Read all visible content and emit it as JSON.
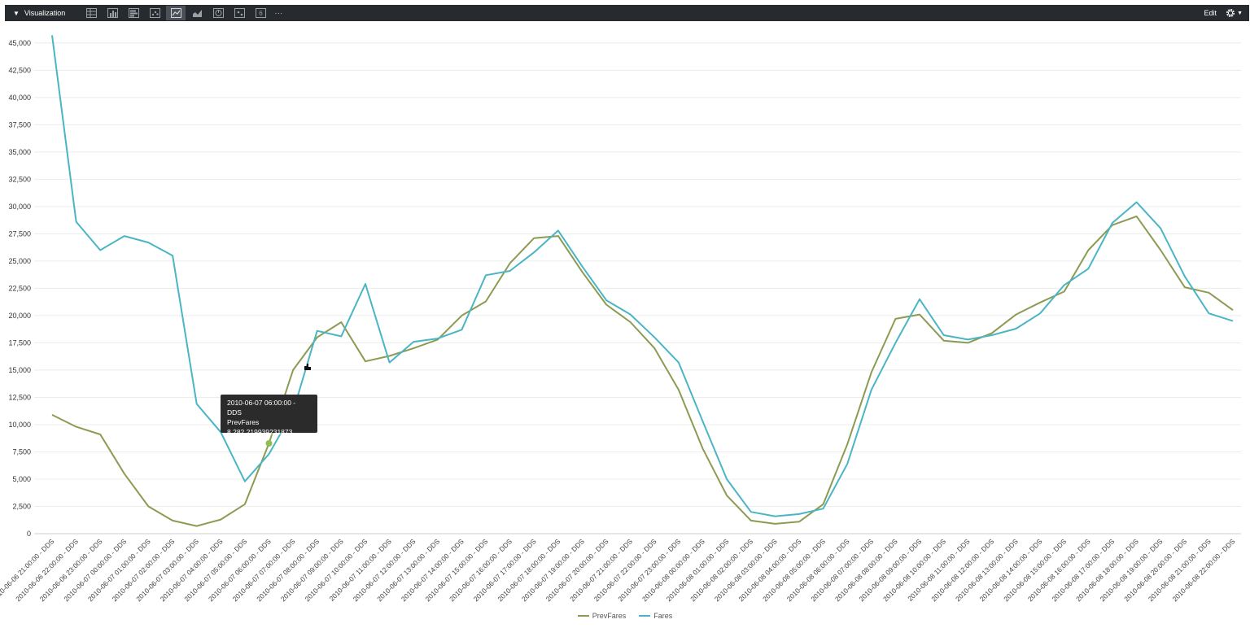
{
  "panel": {
    "title": "Visualization",
    "collapse_icon": "triangle-down-icon",
    "edit_label": "Edit",
    "more_label": "···",
    "toolbar": [
      {
        "icon": "table-icon",
        "active": false
      },
      {
        "icon": "column-chart-icon",
        "active": false
      },
      {
        "icon": "bar-chart-icon",
        "active": false
      },
      {
        "icon": "scatter-chart-icon",
        "active": false
      },
      {
        "icon": "line-chart-icon",
        "active": true
      },
      {
        "icon": "area-chart-icon",
        "active": false
      },
      {
        "icon": "pie-chart-icon",
        "active": false
      },
      {
        "icon": "map-icon",
        "active": false
      },
      {
        "icon": "single-value-icon",
        "active": false
      }
    ]
  },
  "tooltip": {
    "time": "2010-06-07 06:00:00 - DDS",
    "series": "PrevFares",
    "value": "8,282.219939231873"
  },
  "legend": [
    {
      "name": "PrevFares",
      "color": "#8c9b52"
    },
    {
      "name": "Fares",
      "color": "#4ab5c4"
    }
  ],
  "chart_data": {
    "type": "line",
    "ylim": [
      0,
      47000
    ],
    "yticks": [
      "0",
      "2,500",
      "5,000",
      "7,500",
      "10,000",
      "12,500",
      "15,000",
      "17,500",
      "20,000",
      "22,500",
      "25,000",
      "27,500",
      "30,000",
      "32,500",
      "35,000",
      "37,500",
      "40,000",
      "42,500",
      "45,000"
    ],
    "ytick_values": [
      0,
      2500,
      5000,
      7500,
      10000,
      12500,
      15000,
      17500,
      20000,
      22500,
      25000,
      27500,
      30000,
      32500,
      35000,
      37500,
      40000,
      42500,
      45000
    ],
    "grid": true,
    "legend_position": "bottom",
    "categories": [
      "2010-06-06 21:00:00 - DDS",
      "2010-06-06 22:00:00 - DDS",
      "2010-06-06 23:00:00 - DDS",
      "2010-06-07 00:00:00 - DDS",
      "2010-06-07 01:00:00 - DDS",
      "2010-06-07 02:00:00 - DDS",
      "2010-06-07 03:00:00 - DDS",
      "2010-06-07 04:00:00 - DDS",
      "2010-06-07 05:00:00 - DDS",
      "2010-06-07 06:00:00 - DDS",
      "2010-06-07 07:00:00 - DDS",
      "2010-06-07 08:00:00 - DDS",
      "2010-06-07 09:00:00 - DDS",
      "2010-06-07 10:00:00 - DDS",
      "2010-06-07 11:00:00 - DDS",
      "2010-06-07 12:00:00 - DDS",
      "2010-06-07 13:00:00 - DDS",
      "2010-06-07 14:00:00 - DDS",
      "2010-06-07 15:00:00 - DDS",
      "2010-06-07 16:00:00 - DDS",
      "2010-06-07 17:00:00 - DDS",
      "2010-06-07 18:00:00 - DDS",
      "2010-06-07 19:00:00 - DDS",
      "2010-06-07 20:00:00 - DDS",
      "2010-06-07 21:00:00 - DDS",
      "2010-06-07 22:00:00 - DDS",
      "2010-06-07 23:00:00 - DDS",
      "2010-06-08 00:00:00 - DDS",
      "2010-06-08 01:00:00 - DDS",
      "2010-06-08 02:00:00 - DDS",
      "2010-06-08 03:00:00 - DDS",
      "2010-06-08 04:00:00 - DDS",
      "2010-06-08 05:00:00 - DDS",
      "2010-06-08 06:00:00 - DDS",
      "2010-06-08 07:00:00 - DDS",
      "2010-06-08 08:00:00 - DDS",
      "2010-06-08 09:00:00 - DDS",
      "2010-06-08 10:00:00 - DDS",
      "2010-06-08 11:00:00 - DDS",
      "2010-06-08 12:00:00 - DDS",
      "2010-06-08 13:00:00 - DDS",
      "2010-06-08 14:00:00 - DDS",
      "2010-06-08 15:00:00 - DDS",
      "2010-06-08 16:00:00 - DDS",
      "2010-06-08 17:00:00 - DDS",
      "2010-06-08 18:00:00 - DDS",
      "2010-06-08 19:00:00 - DDS",
      "2010-06-08 20:00:00 - DDS",
      "2010-06-08 21:00:00 - DDS",
      "2010-06-08 22:00:00 - DDS"
    ],
    "series": [
      {
        "name": "PrevFares",
        "color": "#8c9b52",
        "values": [
          10900,
          9800,
          9100,
          5500,
          2500,
          1200,
          700,
          1300,
          2700,
          8282,
          15000,
          18000,
          19400,
          15800,
          16300,
          17000,
          17800,
          20000,
          21300,
          24800,
          27100,
          27300,
          24000,
          21000,
          19400,
          17000,
          13200,
          7800,
          3500,
          1200,
          900,
          1100,
          2700,
          8200,
          14800,
          19700,
          20100,
          17700,
          17500,
          18400,
          20100,
          21200,
          22200,
          26000,
          28300,
          29100,
          26000,
          22600,
          22100,
          20500
        ]
      },
      {
        "name": "Fares",
        "color": "#4ab5c4",
        "values": [
          45700,
          28600,
          26000,
          27300,
          26700,
          25500,
          11900,
          9300,
          4800,
          7300,
          11200,
          18600,
          18100,
          22900,
          15700,
          17600,
          17900,
          18700,
          23700,
          24100,
          25800,
          27800,
          24500,
          21400,
          20100,
          18000,
          15700,
          10300,
          5000,
          2000,
          1600,
          1800,
          2300,
          6400,
          13200,
          17500,
          21500,
          18200,
          17800,
          18200,
          18800,
          20200,
          22800,
          24300,
          28500,
          30400,
          28000,
          23600,
          20200,
          19500
        ]
      }
    ]
  }
}
